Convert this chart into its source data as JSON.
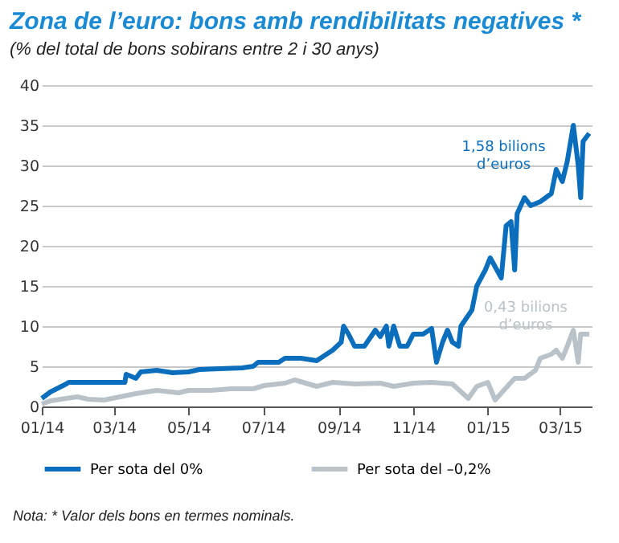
{
  "chart_data": {
    "type": "line",
    "title": "Zona de l’euro: bons amb rendibilitats negatives *",
    "subtitle": "(% del total de bons sobirans entre 2 i 30 anys)",
    "xlim": [
      "2014-01-01",
      "2015-03-27"
    ],
    "xticks": [
      {
        "value": "2014-01-01",
        "label": "01/14"
      },
      {
        "value": "2014-03-01",
        "label": "03/14"
      },
      {
        "value": "2014-05-01",
        "label": "05/14"
      },
      {
        "value": "2014-07-01",
        "label": "07/14"
      },
      {
        "value": "2014-09-01",
        "label": "09/14"
      },
      {
        "value": "2014-11-01",
        "label": "11/14"
      },
      {
        "value": "2015-01-01",
        "label": "01/15"
      },
      {
        "value": "2015-03-01",
        "label": "03/15"
      }
    ],
    "ylim": [
      0,
      40
    ],
    "yticks": [
      0,
      5,
      10,
      15,
      20,
      25,
      30,
      35,
      40
    ],
    "grid": "y",
    "legend": "bottom",
    "marker": "none",
    "series": [
      {
        "name": "Per sota del 0%",
        "color": "#0a6ebd",
        "x": [
          "2014-01-01",
          "2014-01-08",
          "2014-01-21",
          "2014-01-23",
          "2014-03-10",
          "2014-03-11",
          "2014-03-19",
          "2014-03-23",
          "2014-04-05",
          "2014-04-18",
          "2014-05-01",
          "2014-05-10",
          "2014-05-27",
          "2014-06-14",
          "2014-06-23",
          "2014-06-27",
          "2014-07-14",
          "2014-07-19",
          "2014-08-01",
          "2014-08-14",
          "2014-08-27",
          "2014-09-03",
          "2014-09-05",
          "2014-09-09",
          "2014-09-14",
          "2014-09-22",
          "2014-10-01",
          "2014-10-05",
          "2014-10-10",
          "2014-10-12",
          "2014-10-16",
          "2014-10-21",
          "2014-10-27",
          "2014-11-01",
          "2014-11-09",
          "2014-11-16",
          "2014-11-20",
          "2014-11-25",
          "2014-11-29",
          "2014-12-03",
          "2014-12-08",
          "2014-12-10",
          "2014-12-19",
          "2014-12-23",
          "2014-12-30",
          "2015-01-03",
          "2015-01-12",
          "2015-01-16",
          "2015-01-20",
          "2015-01-23",
          "2015-01-25",
          "2015-01-31",
          "2015-02-05",
          "2015-02-13",
          "2015-02-22",
          "2015-02-26",
          "2015-03-03",
          "2015-03-07",
          "2015-03-12",
          "2015-03-16",
          "2015-03-18",
          "2015-03-20",
          "2015-03-25"
        ],
        "values": [
          1,
          1.8,
          2.8,
          3,
          3,
          4,
          3.5,
          4.3,
          4.5,
          4.2,
          4.3,
          4.6,
          4.7,
          4.8,
          5,
          5.5,
          5.5,
          6,
          6,
          5.7,
          7,
          8,
          10,
          9,
          7.5,
          7.5,
          9.5,
          8.7,
          10,
          7.5,
          10,
          7.5,
          7.5,
          9,
          9,
          9.7,
          5.5,
          8,
          9.5,
          8,
          7.5,
          10,
          12,
          15,
          17,
          18.5,
          16,
          22.5,
          23,
          17,
          24,
          26,
          25,
          25.5,
          26.5,
          29.5,
          28,
          30.5,
          35,
          30,
          26,
          33,
          34
        ]
      },
      {
        "name": "Per sota del –0,2%",
        "color": "#b8c2c8",
        "x": [
          "2014-01-01",
          "2014-01-08",
          "2014-01-21",
          "2014-01-30",
          "2014-02-08",
          "2014-02-21",
          "2014-03-06",
          "2014-03-19",
          "2014-04-05",
          "2014-04-23",
          "2014-05-01",
          "2014-05-19",
          "2014-06-05",
          "2014-06-23",
          "2014-07-02",
          "2014-07-19",
          "2014-07-27",
          "2014-08-14",
          "2014-08-27",
          "2014-09-14",
          "2014-10-05",
          "2014-10-16",
          "2014-11-01",
          "2014-11-16",
          "2014-12-03",
          "2014-12-16",
          "2014-12-23",
          "2015-01-01",
          "2015-01-07",
          "2015-01-14",
          "2015-01-23",
          "2015-01-31",
          "2015-02-09",
          "2015-02-13",
          "2015-02-22",
          "2015-02-26",
          "2015-03-03",
          "2015-03-07",
          "2015-03-12",
          "2015-03-16",
          "2015-03-18",
          "2015-03-25"
        ],
        "values": [
          0.3,
          0.7,
          1,
          1.2,
          0.9,
          0.8,
          1.2,
          1.6,
          2,
          1.7,
          2,
          2,
          2.2,
          2.2,
          2.6,
          2.9,
          3.3,
          2.5,
          3,
          2.8,
          2.9,
          2.5,
          2.9,
          3,
          2.8,
          1,
          2.5,
          3,
          0.8,
          2,
          3.5,
          3.5,
          4.5,
          6,
          6.5,
          7,
          6,
          7.5,
          9.5,
          5.5,
          9,
          9
        ]
      }
    ],
    "annotations": [
      "1,58 bilions\nd’euros",
      "0,43 bilions\nd’euros",
      "Nota: * Valor dels bons en termes nominals."
    ]
  }
}
